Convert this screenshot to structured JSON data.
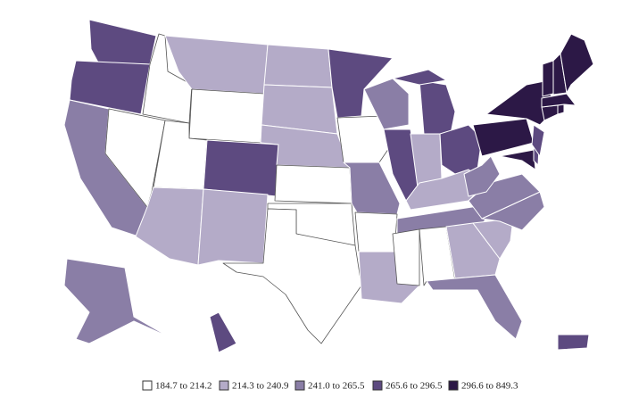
{
  "legend": [
    {
      "label": "184.7 to 214.2",
      "color": "#ffffff"
    },
    {
      "label": "214.3 to 240.9",
      "color": "#b4abc8"
    },
    {
      "label": "241.0 to 265.5",
      "color": "#8a7ea6"
    },
    {
      "label": "265.6 to 296.5",
      "color": "#5d4a80"
    },
    {
      "label": "296.6 to 849.3",
      "color": "#2c1846"
    }
  ]
}
